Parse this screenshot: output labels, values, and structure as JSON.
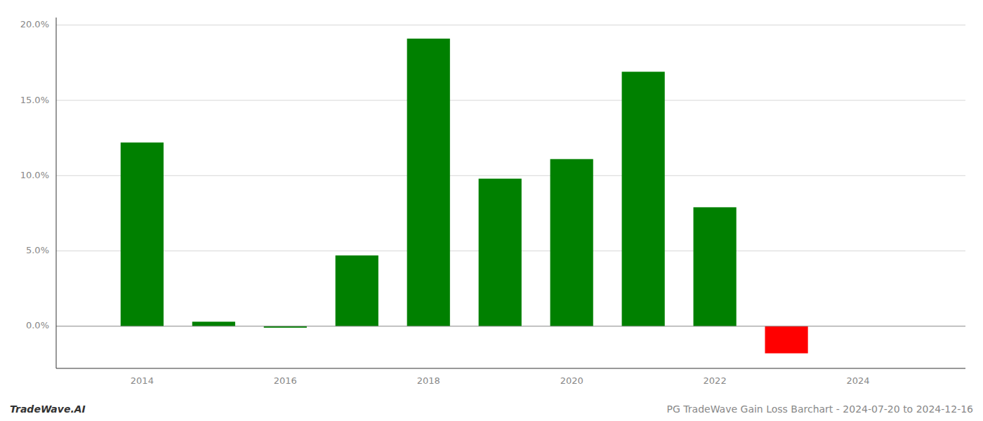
{
  "chart_data": {
    "type": "bar",
    "x": [
      2014,
      2015,
      2016,
      2017,
      2018,
      2019,
      2020,
      2021,
      2022,
      2023
    ],
    "values": [
      0.122,
      0.003,
      -0.001,
      0.047,
      0.191,
      0.098,
      0.111,
      0.169,
      0.079,
      -0.018
    ],
    "colors": [
      "#008000",
      "#008000",
      "#008000",
      "#008000",
      "#008000",
      "#008000",
      "#008000",
      "#008000",
      "#008000",
      "#ff0000"
    ],
    "xlim": [
      2012.8,
      2025.5
    ],
    "xticks": [
      2014,
      2016,
      2018,
      2020,
      2022,
      2024
    ],
    "ylim": [
      -0.028,
      0.205
    ],
    "yticks": [
      {
        "value": 0.0,
        "label": "0.0%"
      },
      {
        "value": 0.05,
        "label": "5.0%"
      },
      {
        "value": 0.1,
        "label": "10.0%"
      },
      {
        "value": 0.15,
        "label": "15.0%"
      },
      {
        "value": 0.2,
        "label": "20.0%"
      }
    ],
    "grid": true,
    "annotations": [
      "TradeWave.AI",
      "PG TradeWave Gain Loss Barchart - 2024-07-20 to 2024-12-16"
    ]
  }
}
